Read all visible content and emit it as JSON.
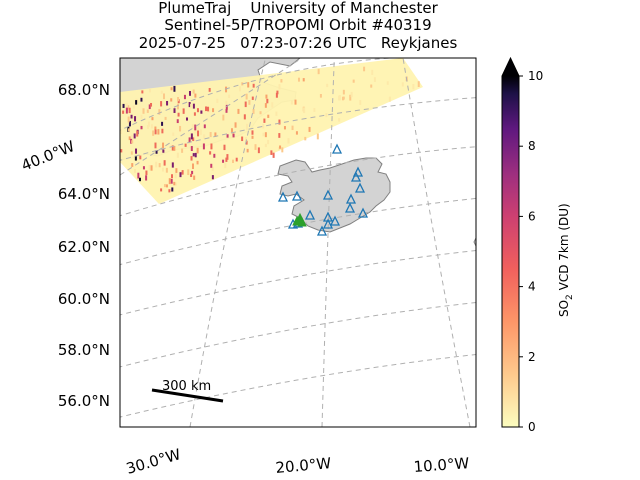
{
  "title": {
    "line1": "PlumeTraj    University of Manchester",
    "line2": "Sentinel-5P/TROPOMI Orbit #40319",
    "line3": "2025-07-25   07:23-07:26 UTC   Reykjanes"
  },
  "latitude_labels": [
    "68.0°N",
    "64.0°N",
    "62.0°N",
    "60.0°N",
    "58.0°N",
    "56.0°N"
  ],
  "longitude_labels": [
    "40.0°W",
    "30.0°W",
    "20.0°W",
    "10.0°W"
  ],
  "colorbar": {
    "ticks": [
      "0",
      "2",
      "4",
      "6",
      "8",
      "10"
    ],
    "label_prefix": "SO",
    "label_sub": "2",
    "label_suffix": " VCD 7km (DU)",
    "range": [
      0,
      10
    ],
    "extend": "max",
    "colormap": "magma_r"
  },
  "scale_bar": {
    "label": "300 km"
  },
  "markers": {
    "volcano_style": "blue open triangle",
    "volcano_color": "#1f77b4",
    "active_vent_style": "green filled triangle",
    "active_vent_color": "#2ca02c"
  },
  "colors": {
    "land": "#d3d3d3",
    "coast": "#808080",
    "grid": "#b0b0b0",
    "swath_background": "#fff3b0"
  }
}
